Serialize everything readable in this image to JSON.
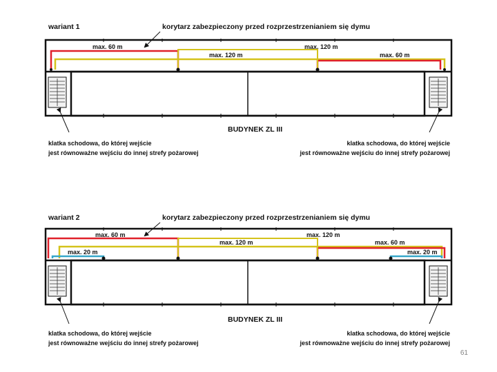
{
  "variants": [
    {
      "title": "wariant 1",
      "corridor_label": "korytarz zabezpieczony przed rozprzestrzenianiem się dymu",
      "building_label": "BUDYNEK ZL III",
      "stair_left_label": [
        "klatka schodowa, do której wejście",
        "jest równoważne wejściu do innej strefy pożarowej"
      ],
      "stair_right_label": [
        "klatka schodowa, do której wejście",
        "jest równoważne wejściu do innej strefy pożarowej"
      ],
      "distances": [
        "max. 60 m",
        "max. 120 m",
        "max. 120 m",
        "max. 60 m"
      ]
    },
    {
      "title": "wariant 2",
      "corridor_label": "korytarz zabezpieczony przed rozprzestrzenianiem się dymu",
      "building_label": "BUDYNEK ZL III",
      "stair_left_label": [
        "klatka schodowa, do której wejście",
        "jest równoważne wejściu do innej strefy pożarowej"
      ],
      "stair_right_label": [
        "klatka schodowa, do której wejście",
        "jest równoważne wejściu do innej strefy pożarowej"
      ],
      "distances": [
        "max. 60 m",
        "max. 120 m",
        "max. 120 m",
        "max. 60 m",
        "max. 20 m",
        "max. 20 m"
      ]
    }
  ],
  "colors": {
    "red": "#e0202a",
    "yellow": "#d4c21a",
    "cyan": "#35a7c9",
    "wall": "#111111"
  },
  "page_number": "61"
}
